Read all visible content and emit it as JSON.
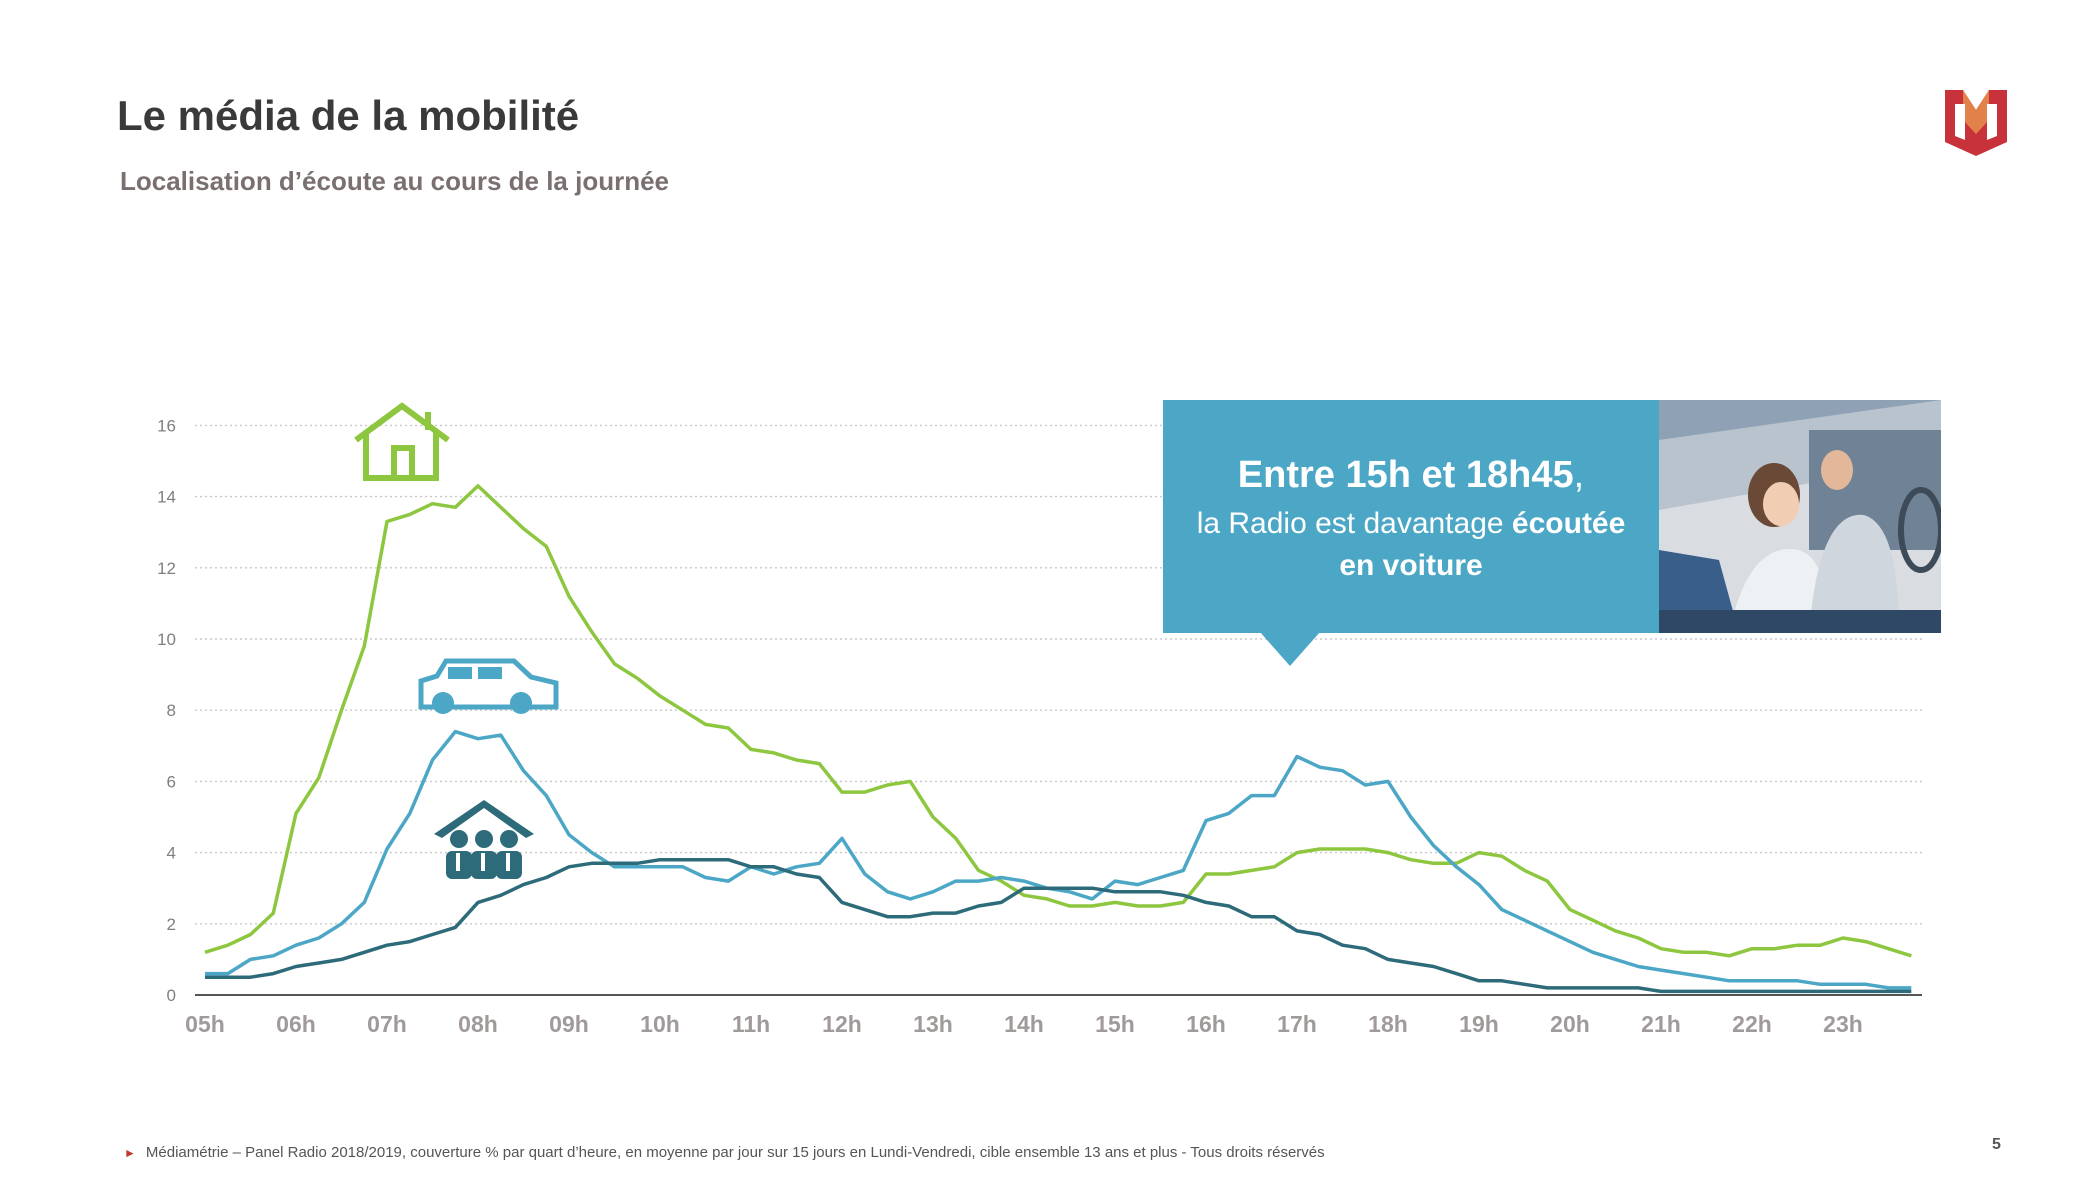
{
  "header": {
    "title": "Le média de la mobilité",
    "subtitle": "Localisation d’écoute au cours de la journée"
  },
  "callout": {
    "line1_bold": "Entre 15h et 18h45",
    "line1_rest": ",",
    "line2": "la Radio est davantage ",
    "line2_bold": "écoutée",
    "line3_bold": "en voiture"
  },
  "footnote": "Médiamétrie – Panel Radio 2018/2019, couverture % par quart d’heure, en moyenne par jour sur 15 jours en Lundi-Vendredi, cible ensemble 13 ans et plus - Tous droits réservés",
  "page_number": "5",
  "icons": [
    "house-icon",
    "car-icon",
    "office-people-icon"
  ],
  "colors": {
    "home": "#8dc63f",
    "car": "#4ba7c5",
    "work": "#2e6b7a",
    "accent": "#c0392b"
  },
  "chart_data": {
    "type": "line",
    "title": "",
    "xlabel": "",
    "ylabel": "",
    "ylim": [
      0,
      16
    ],
    "yticks": [
      0,
      2,
      4,
      6,
      8,
      10,
      12,
      14,
      16
    ],
    "xticks": [
      "05h",
      "06h",
      "07h",
      "08h",
      "09h",
      "10h",
      "11h",
      "12h",
      "13h",
      "14h",
      "15h",
      "16h",
      "17h",
      "18h",
      "19h",
      "20h",
      "21h",
      "22h",
      "23h"
    ],
    "x_start_hour": 5,
    "step_minutes": 15,
    "grid": true,
    "series": [
      {
        "key": "home",
        "icon": "house-icon",
        "color": "#8dc63f",
        "values": [
          1.2,
          1.4,
          1.7,
          2.3,
          5.1,
          6.1,
          8.0,
          9.8,
          13.3,
          13.5,
          13.8,
          13.7,
          14.3,
          13.7,
          13.1,
          12.6,
          11.2,
          10.2,
          9.3,
          8.9,
          8.4,
          8.0,
          7.6,
          7.5,
          6.9,
          6.8,
          6.6,
          6.5,
          5.7,
          5.7,
          5.9,
          6.0,
          5.0,
          4.4,
          3.5,
          3.2,
          2.8,
          2.7,
          2.5,
          2.5,
          2.6,
          2.5,
          2.5,
          2.6,
          3.4,
          3.4,
          3.5,
          3.6,
          4.0,
          4.1,
          4.1,
          4.1,
          4.0,
          3.8,
          3.7,
          3.7,
          4.0,
          3.9,
          3.5,
          3.2,
          2.4,
          2.1,
          1.8,
          1.6,
          1.3,
          1.2,
          1.2,
          1.1,
          1.3,
          1.3,
          1.4,
          1.4,
          1.6,
          1.5,
          1.3,
          1.1
        ]
      },
      {
        "key": "car",
        "icon": "car-icon",
        "color": "#4ba7c5",
        "values": [
          0.6,
          0.6,
          1.0,
          1.1,
          1.4,
          1.6,
          2.0,
          2.6,
          4.1,
          5.1,
          6.6,
          7.4,
          7.2,
          7.3,
          6.3,
          5.6,
          4.5,
          4.0,
          3.6,
          3.6,
          3.6,
          3.6,
          3.3,
          3.2,
          3.6,
          3.4,
          3.6,
          3.7,
          4.4,
          3.4,
          2.9,
          2.7,
          2.9,
          3.2,
          3.2,
          3.3,
          3.2,
          3.0,
          2.9,
          2.7,
          3.2,
          3.1,
          3.3,
          3.5,
          4.9,
          5.1,
          5.6,
          5.6,
          6.7,
          6.4,
          6.3,
          5.9,
          6.0,
          5.0,
          4.2,
          3.6,
          3.1,
          2.4,
          2.1,
          1.8,
          1.5,
          1.2,
          1.0,
          0.8,
          0.7,
          0.6,
          0.5,
          0.4,
          0.4,
          0.4,
          0.4,
          0.3,
          0.3,
          0.3,
          0.2,
          0.2
        ]
      },
      {
        "key": "work",
        "icon": "office-people-icon",
        "color": "#2e6b7a",
        "values": [
          0.5,
          0.5,
          0.5,
          0.6,
          0.8,
          0.9,
          1.0,
          1.2,
          1.4,
          1.5,
          1.7,
          1.9,
          2.6,
          2.8,
          3.1,
          3.3,
          3.6,
          3.7,
          3.7,
          3.7,
          3.8,
          3.8,
          3.8,
          3.8,
          3.6,
          3.6,
          3.4,
          3.3,
          2.6,
          2.4,
          2.2,
          2.2,
          2.3,
          2.3,
          2.5,
          2.6,
          3.0,
          3.0,
          3.0,
          3.0,
          2.9,
          2.9,
          2.9,
          2.8,
          2.6,
          2.5,
          2.2,
          2.2,
          1.8,
          1.7,
          1.4,
          1.3,
          1.0,
          0.9,
          0.8,
          0.6,
          0.4,
          0.4,
          0.3,
          0.2,
          0.2,
          0.2,
          0.2,
          0.2,
          0.1,
          0.1,
          0.1,
          0.1,
          0.1,
          0.1,
          0.1,
          0.1,
          0.1,
          0.1,
          0.1,
          0.1
        ]
      }
    ]
  }
}
